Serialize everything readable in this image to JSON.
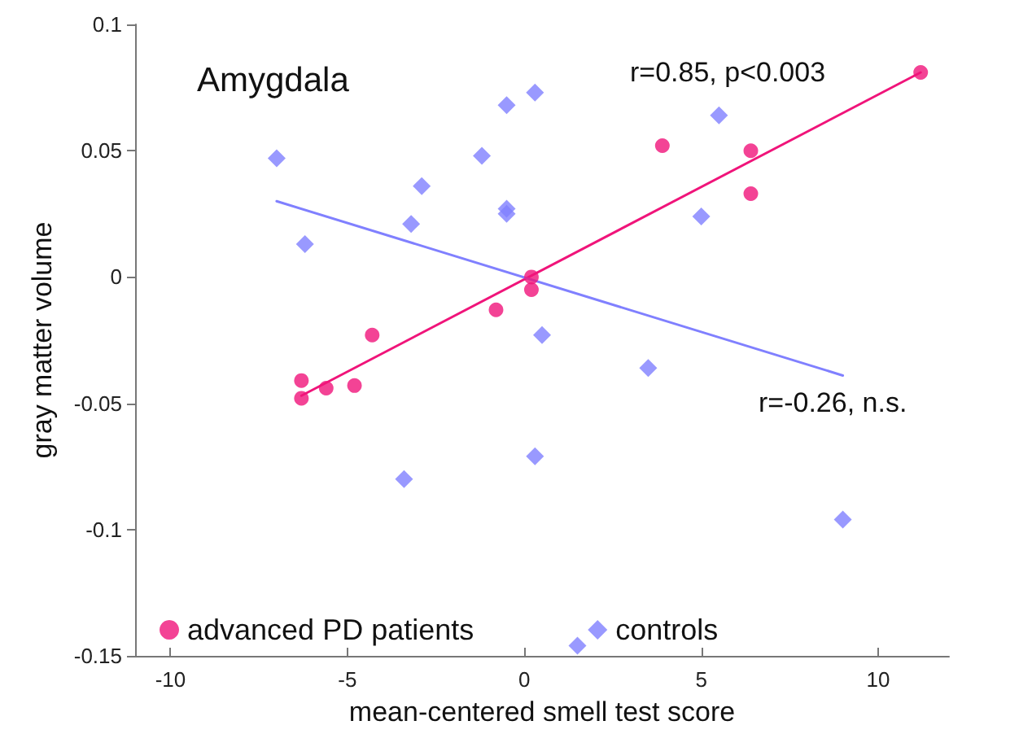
{
  "chart_data": {
    "type": "scatter",
    "title": "Amygdala",
    "xlabel": "mean-centered smell test score",
    "ylabel": "gray matter volume",
    "xlim": [
      -11,
      12
    ],
    "xticks": [
      -10,
      -5,
      0,
      5,
      10
    ],
    "ylim": [
      -0.15,
      0.1
    ],
    "yticks": [
      -0.15,
      -0.1,
      -0.05,
      0,
      0.05,
      0.1
    ],
    "grid": false,
    "legend": "bottom",
    "series": [
      {
        "name": "advanced PD patients",
        "color": "#f0147a",
        "marker": "circle",
        "x": [
          -6.3,
          -6.3,
          -5.6,
          -4.8,
          -4.3,
          -0.8,
          0.2,
          0.2,
          3.9,
          6.4,
          6.4,
          11.2
        ],
        "values": [
          -0.048,
          -0.041,
          -0.044,
          -0.043,
          -0.023,
          -0.013,
          0.0,
          -0.005,
          0.052,
          0.05,
          0.033,
          0.081
        ]
      },
      {
        "name": "controls",
        "color": "#8080ff",
        "marker": "diamond",
        "x": [
          -7.0,
          -6.2,
          -2.9,
          -3.2,
          -1.2,
          -0.5,
          0.3,
          -0.5,
          -0.5,
          0.5,
          5.5,
          5.0,
          -3.4,
          0.3,
          1.5,
          3.5,
          9.0
        ],
        "values": [
          0.047,
          0.013,
          0.036,
          0.021,
          0.048,
          0.068,
          0.073,
          0.027,
          0.025,
          -0.023,
          0.064,
          0.024,
          -0.08,
          -0.071,
          -0.146,
          -0.036,
          -0.096
        ]
      },
      {
        "type": "line",
        "color": "#f0147a",
        "marker": "none",
        "x": [
          -6.3,
          11.2
        ],
        "values": [
          -0.047,
          0.081
        ]
      },
      {
        "type": "line",
        "color": "#8080ff",
        "marker": "none",
        "x": [
          -7.0,
          9.0
        ],
        "values": [
          0.03,
          -0.039
        ]
      }
    ],
    "annotations": [
      "r=0.85, p<0.003",
      "r=-0.26, n.s."
    ]
  }
}
